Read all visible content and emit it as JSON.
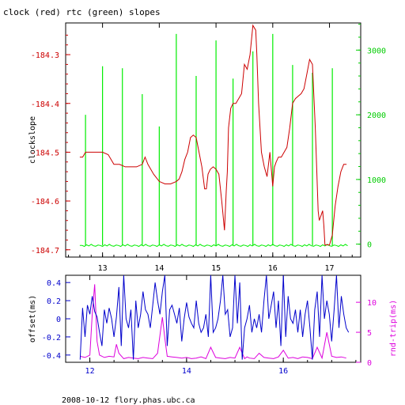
{
  "header": {
    "title": "clock (red) rtc (green) slopes"
  },
  "footer": {
    "text": "2008-10-12 flory.phas.ubc.ca"
  },
  "colors": {
    "red": "#cc0000",
    "green": "#00ee00",
    "blue": "#0000cc",
    "magenta": "#dd00dd",
    "axis_green": "#00cc00"
  },
  "chart_data": [
    {
      "type": "line",
      "title": "clock (red) rtc (green) slopes",
      "xlabel": "",
      "ylabel": "clockslope",
      "y2label": "",
      "xlim": [
        12.35,
        17.55
      ],
      "ylim": [
        -184.715,
        -184.235
      ],
      "y2lim": [
        -200,
        3420
      ],
      "x_ticks": [
        13,
        14,
        15,
        16,
        17
      ],
      "y_ticks": [
        -184.3,
        -184.4,
        -184.5,
        -184.6,
        -184.7
      ],
      "y2_ticks": [
        0,
        1000,
        2000,
        3000
      ],
      "grid": false,
      "series": [
        {
          "name": "clock",
          "axis": "left",
          "color": "#cc0000",
          "x": [
            12.6,
            12.65,
            12.7,
            12.75,
            12.8,
            12.9,
            13.0,
            13.1,
            13.2,
            13.3,
            13.4,
            13.5,
            13.6,
            13.7,
            13.75,
            13.8,
            13.85,
            13.9,
            14.0,
            14.1,
            14.2,
            14.3,
            14.35,
            14.4,
            14.45,
            14.5,
            14.55,
            14.6,
            14.65,
            14.7,
            14.75,
            14.8,
            14.83,
            14.86,
            14.9,
            14.95,
            15.0,
            15.05,
            15.1,
            15.15,
            15.18,
            15.2,
            15.22,
            15.26,
            15.3,
            15.35,
            15.4,
            15.45,
            15.5,
            15.55,
            15.6,
            15.65,
            15.7,
            15.72,
            15.75,
            15.8,
            15.85,
            15.9,
            15.95,
            16.0,
            16.03,
            16.06,
            16.1,
            16.15,
            16.2,
            16.25,
            16.3,
            16.35,
            16.4,
            16.45,
            16.5,
            16.55,
            16.6,
            16.65,
            16.7,
            16.75,
            16.8,
            16.82,
            16.85,
            16.88,
            16.9,
            16.92,
            16.95,
            17.0,
            17.05,
            17.1,
            17.15,
            17.2,
            17.25,
            17.3
          ],
          "y": [
            -184.51,
            -184.51,
            -184.5,
            -184.5,
            -184.5,
            -184.5,
            -184.5,
            -184.505,
            -184.525,
            -184.525,
            -184.53,
            -184.53,
            -184.53,
            -184.525,
            -184.51,
            -184.525,
            -184.535,
            -184.545,
            -184.56,
            -184.565,
            -184.565,
            -184.56,
            -184.555,
            -184.54,
            -184.515,
            -184.5,
            -184.47,
            -184.465,
            -184.47,
            -184.5,
            -184.53,
            -184.575,
            -184.575,
            -184.545,
            -184.535,
            -184.53,
            -184.535,
            -184.545,
            -184.6,
            -184.66,
            -184.58,
            -184.54,
            -184.45,
            -184.41,
            -184.4,
            -184.4,
            -184.39,
            -184.38,
            -184.32,
            -184.33,
            -184.3,
            -184.24,
            -184.25,
            -184.3,
            -184.4,
            -184.5,
            -184.53,
            -184.55,
            -184.5,
            -184.57,
            -184.53,
            -184.52,
            -184.51,
            -184.51,
            -184.5,
            -184.49,
            -184.45,
            -184.4,
            -184.39,
            -184.385,
            -184.38,
            -184.37,
            -184.34,
            -184.31,
            -184.32,
            -184.45,
            -184.62,
            -184.64,
            -184.63,
            -184.62,
            -184.65,
            -184.69,
            -184.69,
            -184.69,
            -184.67,
            -184.61,
            -184.57,
            -184.54,
            -184.525,
            -184.525
          ]
        },
        {
          "name": "rtc",
          "axis": "right",
          "color": "#00ee00",
          "baseline": -20,
          "spikes": [
            {
              "x": 12.7,
              "y": 2000
            },
            {
              "x": 13.0,
              "y": 2750
            },
            {
              "x": 13.35,
              "y": 2720
            },
            {
              "x": 13.7,
              "y": 2320
            },
            {
              "x": 14.0,
              "y": 1820
            },
            {
              "x": 14.3,
              "y": 3250
            },
            {
              "x": 14.65,
              "y": 2600
            },
            {
              "x": 15.0,
              "y": 3150
            },
            {
              "x": 15.3,
              "y": 2560
            },
            {
              "x": 15.65,
              "y": 2980
            },
            {
              "x": 16.0,
              "y": 3250
            },
            {
              "x": 16.35,
              "y": 2770
            },
            {
              "x": 16.7,
              "y": 2650
            },
            {
              "x": 17.05,
              "y": 2720
            }
          ]
        }
      ]
    },
    {
      "type": "line",
      "title": "",
      "xlabel": "",
      "ylabel": "offset(ms)",
      "y2label": "rnd-trip(ms)",
      "xlim": [
        11.5,
        17.6
      ],
      "ylim": [
        -0.48,
        0.48
      ],
      "y2lim": [
        0,
        14.5
      ],
      "x_ticks": [
        12,
        14,
        16
      ],
      "y_ticks": [
        0.4,
        0.2,
        0,
        -0.2,
        -0.4
      ],
      "y2_ticks": [
        0,
        5,
        10
      ],
      "grid": false,
      "series": [
        {
          "name": "offset",
          "axis": "left",
          "color": "#0000cc",
          "x": [
            11.8,
            11.85,
            11.9,
            11.95,
            12.0,
            12.05,
            12.1,
            12.15,
            12.2,
            12.25,
            12.3,
            12.35,
            12.4,
            12.45,
            12.5,
            12.55,
            12.6,
            12.65,
            12.7,
            12.75,
            12.8,
            12.85,
            12.9,
            12.95,
            13.0,
            13.05,
            13.1,
            13.15,
            13.2,
            13.25,
            13.3,
            13.35,
            13.4,
            13.45,
            13.5,
            13.55,
            13.6,
            13.65,
            13.7,
            13.75,
            13.8,
            13.85,
            13.9,
            13.95,
            14.0,
            14.05,
            14.1,
            14.15,
            14.2,
            14.25,
            14.3,
            14.35,
            14.4,
            14.45,
            14.5,
            14.55,
            14.6,
            14.65,
            14.7,
            14.75,
            14.8,
            14.85,
            14.9,
            14.95,
            15.0,
            15.05,
            15.1,
            15.15,
            15.2,
            15.25,
            15.3,
            15.35,
            15.4,
            15.45,
            15.5,
            15.55,
            15.6,
            15.65,
            15.7,
            15.75,
            15.8,
            15.85,
            15.9,
            15.95,
            16.0,
            16.05,
            16.1,
            16.15,
            16.2,
            16.25,
            16.3,
            16.35,
            16.4,
            16.45,
            16.5,
            16.55,
            16.6,
            16.65,
            16.7,
            16.75,
            16.8,
            16.85,
            16.9,
            16.95,
            17.0,
            17.05,
            17.1,
            17.15,
            17.2,
            17.25,
            17.3,
            17.35
          ],
          "y": [
            -0.45,
            0.12,
            -0.2,
            0.15,
            0.05,
            0.25,
            0.08,
            0.02,
            -0.15,
            -0.3,
            0.1,
            -0.05,
            0.12,
            0.0,
            -0.2,
            0.02,
            0.35,
            -0.3,
            0.48,
            0.0,
            -0.1,
            0.1,
            -0.45,
            0.2,
            -0.1,
            0.05,
            0.3,
            0.1,
            0.05,
            -0.1,
            0.15,
            0.4,
            0.2,
            0.05,
            0.3,
            0.48,
            -0.3,
            0.1,
            0.15,
            0.05,
            -0.05,
            0.12,
            -0.25,
            0.0,
            0.18,
            0.02,
            -0.05,
            -0.1,
            0.2,
            -0.05,
            -0.15,
            -0.1,
            0.05,
            -0.2,
            0.48,
            -0.15,
            -0.1,
            0.0,
            0.2,
            0.48,
            0.05,
            0.1,
            -0.2,
            -0.1,
            0.48,
            -0.05,
            0.4,
            -0.45,
            -0.1,
            0.0,
            0.15,
            -0.15,
            0.0,
            -0.1,
            0.05,
            -0.15,
            0.2,
            0.48,
            0.0,
            0.15,
            0.3,
            -0.1,
            0.2,
            -0.3,
            0.48,
            -0.2,
            0.25,
            0.0,
            -0.05,
            0.1,
            -0.15,
            0.1,
            -0.2,
            0.05,
            0.2,
            -0.1,
            -0.45,
            0.1,
            0.3,
            -0.2,
            0.48,
            0.0,
            0.2,
            0.05,
            -0.25,
            0.1,
            0.48,
            -0.1,
            0.25,
            0.05,
            -0.1,
            -0.15
          ]
        },
        {
          "name": "rnd-trip",
          "axis": "right",
          "color": "#dd00dd",
          "x": [
            11.8,
            11.9,
            12.0,
            12.05,
            12.1,
            12.15,
            12.2,
            12.3,
            12.4,
            12.5,
            12.55,
            12.6,
            12.7,
            12.8,
            12.9,
            13.0,
            13.1,
            13.2,
            13.3,
            13.4,
            13.45,
            13.5,
            13.55,
            13.6,
            13.7,
            13.8,
            13.9,
            14.0,
            14.1,
            14.2,
            14.3,
            14.4,
            14.5,
            14.6,
            14.7,
            14.8,
            14.9,
            15.0,
            15.1,
            15.2,
            15.25,
            15.3,
            15.4,
            15.5,
            15.6,
            15.7,
            15.8,
            15.9,
            16.0,
            16.1,
            16.2,
            16.3,
            16.4,
            16.5,
            16.6,
            16.7,
            16.8,
            16.9,
            17.0,
            17.1,
            17.2,
            17.3
          ],
          "y": [
            1.0,
            0.8,
            1.2,
            8.0,
            13.0,
            3.5,
            1.2,
            0.8,
            1.0,
            0.9,
            3.0,
            1.5,
            0.6,
            0.8,
            0.7,
            0.6,
            0.8,
            0.7,
            0.6,
            1.5,
            4.5,
            7.5,
            4.0,
            1.0,
            0.9,
            0.8,
            0.7,
            0.8,
            0.6,
            0.7,
            0.9,
            0.6,
            2.5,
            0.8,
            0.7,
            0.6,
            0.8,
            0.7,
            2.5,
            0.6,
            0.9,
            0.7,
            0.6,
            1.5,
            0.8,
            0.7,
            0.6,
            0.9,
            2.0,
            0.7,
            0.8,
            0.6,
            0.9,
            0.8,
            0.6,
            2.5,
            0.7,
            5.0,
            1.0,
            0.8,
            0.9,
            0.7
          ]
        }
      ]
    }
  ]
}
